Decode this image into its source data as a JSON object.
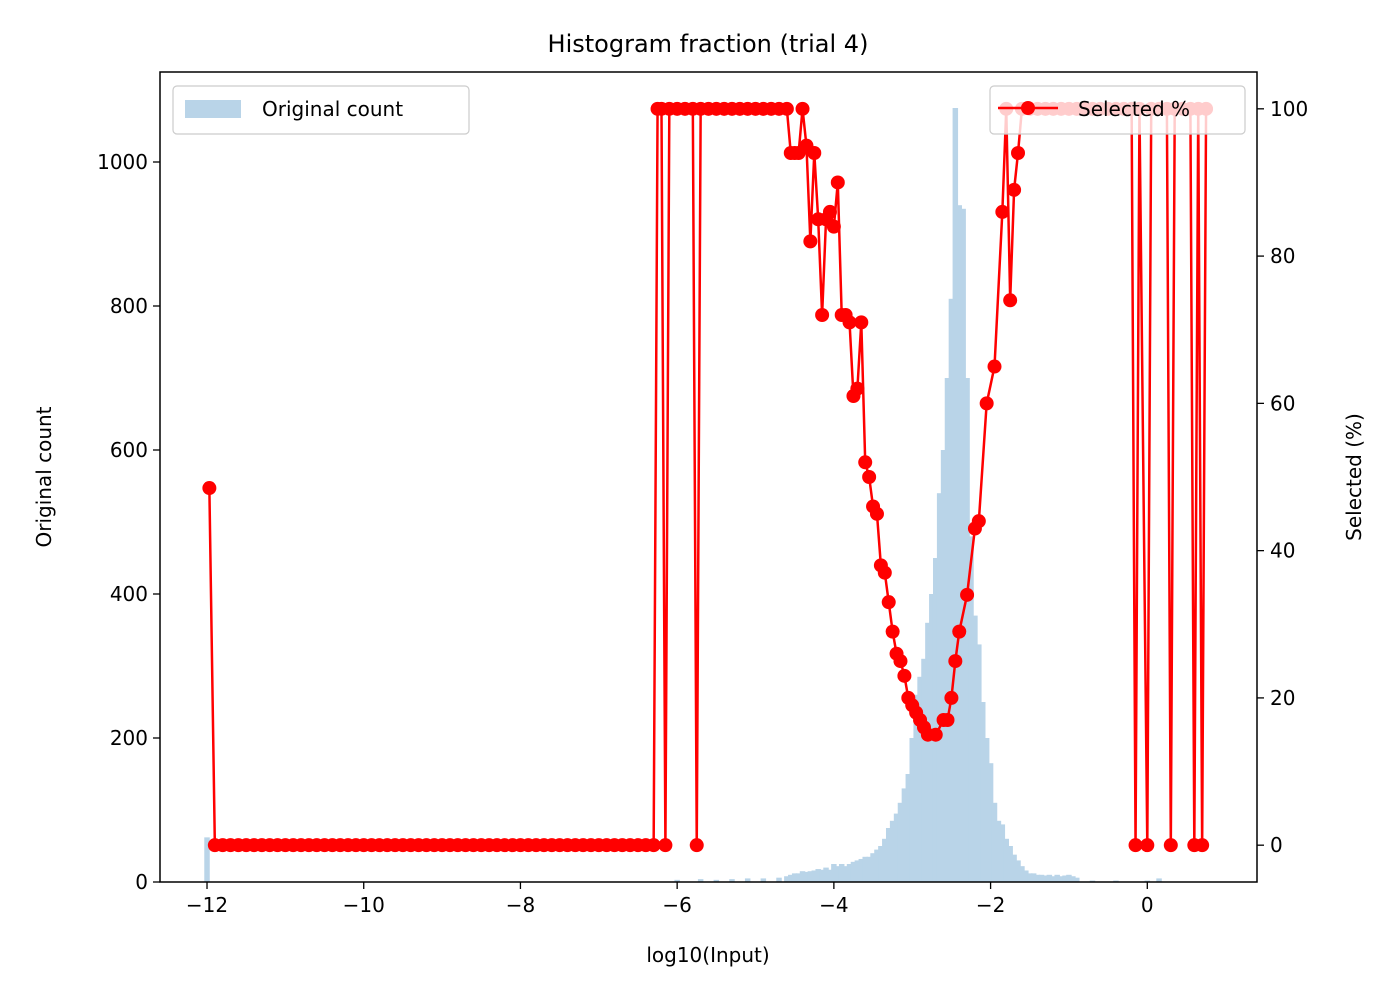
{
  "chart_data": {
    "type": "bar",
    "title": "Histogram fraction (trial 4)",
    "xlabel": "log10(Input)",
    "ylabel_left": "Original count",
    "ylabel_right": "Selected (%)",
    "xlim": [
      -12.6,
      1.4
    ],
    "ylim_left": [
      0,
      1125
    ],
    "ylim_right": [
      -5,
      105
    ],
    "x_ticks": [
      -12,
      -10,
      -8,
      -6,
      -4,
      -2,
      0
    ],
    "x_tick_labels": [
      "−12",
      "−10",
      "−8",
      "−6",
      "−4",
      "−2",
      "0"
    ],
    "y_left_ticks": [
      0,
      200,
      400,
      600,
      800,
      1000
    ],
    "y_left_tick_labels": [
      "0",
      "200",
      "400",
      "600",
      "800",
      "1000"
    ],
    "y_right_ticks": [
      0,
      20,
      40,
      60,
      80,
      100
    ],
    "y_right_tick_labels": [
      "0",
      "20",
      "40",
      "60",
      "80",
      "100"
    ],
    "grid": false,
    "legend": [
      {
        "label": "Original count",
        "position": "top-left",
        "color": "#b9d4e8"
      },
      {
        "label": "Selected %",
        "position": "top-right",
        "color": "#ff0000"
      }
    ],
    "series": [
      {
        "name": "Original count",
        "type": "histogram",
        "color": "#b9d4e8",
        "bin_width": 0.07,
        "bins": [
          [
            -12.0,
            62
          ],
          [
            -6.0,
            3
          ],
          [
            -5.7,
            4
          ],
          [
            -5.5,
            3
          ],
          [
            -5.3,
            4
          ],
          [
            -5.1,
            5
          ],
          [
            -4.9,
            5
          ],
          [
            -4.7,
            6
          ],
          [
            -4.6,
            8
          ],
          [
            -4.55,
            10
          ],
          [
            -4.5,
            12
          ],
          [
            -4.45,
            12
          ],
          [
            -4.4,
            15
          ],
          [
            -4.35,
            14
          ],
          [
            -4.3,
            15
          ],
          [
            -4.25,
            16
          ],
          [
            -4.2,
            18
          ],
          [
            -4.15,
            17
          ],
          [
            -4.1,
            20
          ],
          [
            -4.05,
            17
          ],
          [
            -4.0,
            25
          ],
          [
            -3.95,
            22
          ],
          [
            -3.9,
            25
          ],
          [
            -3.85,
            22
          ],
          [
            -3.8,
            25
          ],
          [
            -3.75,
            28
          ],
          [
            -3.7,
            30
          ],
          [
            -3.65,
            32
          ],
          [
            -3.6,
            35
          ],
          [
            -3.55,
            35
          ],
          [
            -3.5,
            40
          ],
          [
            -3.45,
            45
          ],
          [
            -3.4,
            50
          ],
          [
            -3.35,
            60
          ],
          [
            -3.3,
            75
          ],
          [
            -3.25,
            85
          ],
          [
            -3.2,
            95
          ],
          [
            -3.15,
            110
          ],
          [
            -3.1,
            130
          ],
          [
            -3.05,
            150
          ],
          [
            -3.0,
            200
          ],
          [
            -2.95,
            260
          ],
          [
            -2.9,
            285
          ],
          [
            -2.85,
            310
          ],
          [
            -2.8,
            360
          ],
          [
            -2.75,
            400
          ],
          [
            -2.7,
            450
          ],
          [
            -2.65,
            540
          ],
          [
            -2.6,
            600
          ],
          [
            -2.55,
            700
          ],
          [
            -2.5,
            810
          ],
          [
            -2.45,
            1075
          ],
          [
            -2.4,
            940
          ],
          [
            -2.35,
            935
          ],
          [
            -2.3,
            700
          ],
          [
            -2.25,
            480
          ],
          [
            -2.2,
            370
          ],
          [
            -2.15,
            330
          ],
          [
            -2.1,
            250
          ],
          [
            -2.05,
            200
          ],
          [
            -2.0,
            165
          ],
          [
            -1.95,
            110
          ],
          [
            -1.9,
            85
          ],
          [
            -1.85,
            80
          ],
          [
            -1.8,
            60
          ],
          [
            -1.75,
            50
          ],
          [
            -1.7,
            38
          ],
          [
            -1.65,
            30
          ],
          [
            -1.6,
            22
          ],
          [
            -1.55,
            16
          ],
          [
            -1.5,
            12
          ],
          [
            -1.45,
            12
          ],
          [
            -1.4,
            10
          ],
          [
            -1.35,
            10
          ],
          [
            -1.3,
            9
          ],
          [
            -1.25,
            10
          ],
          [
            -1.2,
            8
          ],
          [
            -1.15,
            10
          ],
          [
            -1.1,
            8
          ],
          [
            -1.05,
            9
          ],
          [
            -1.0,
            10
          ],
          [
            -0.95,
            8
          ],
          [
            -0.9,
            6
          ],
          [
            -0.7,
            2
          ],
          [
            -0.4,
            2
          ],
          [
            0.0,
            2
          ],
          [
            0.15,
            5
          ]
        ]
      },
      {
        "name": "Selected %",
        "type": "line",
        "color": "#ff0000",
        "points": [
          [
            -11.97,
            48.5
          ],
          [
            -11.9,
            0
          ],
          [
            -11.8,
            0
          ],
          [
            -11.7,
            0
          ],
          [
            -11.6,
            0
          ],
          [
            -11.5,
            0
          ],
          [
            -11.4,
            0
          ],
          [
            -11.3,
            0
          ],
          [
            -11.2,
            0
          ],
          [
            -11.1,
            0
          ],
          [
            -11.0,
            0
          ],
          [
            -10.9,
            0
          ],
          [
            -10.8,
            0
          ],
          [
            -10.7,
            0
          ],
          [
            -10.6,
            0
          ],
          [
            -10.5,
            0
          ],
          [
            -10.4,
            0
          ],
          [
            -10.3,
            0
          ],
          [
            -10.2,
            0
          ],
          [
            -10.1,
            0
          ],
          [
            -10.0,
            0
          ],
          [
            -9.9,
            0
          ],
          [
            -9.8,
            0
          ],
          [
            -9.7,
            0
          ],
          [
            -9.6,
            0
          ],
          [
            -9.5,
            0
          ],
          [
            -9.4,
            0
          ],
          [
            -9.3,
            0
          ],
          [
            -9.2,
            0
          ],
          [
            -9.1,
            0
          ],
          [
            -9.0,
            0
          ],
          [
            -8.9,
            0
          ],
          [
            -8.8,
            0
          ],
          [
            -8.7,
            0
          ],
          [
            -8.6,
            0
          ],
          [
            -8.5,
            0
          ],
          [
            -8.4,
            0
          ],
          [
            -8.3,
            0
          ],
          [
            -8.2,
            0
          ],
          [
            -8.1,
            0
          ],
          [
            -8.0,
            0
          ],
          [
            -7.9,
            0
          ],
          [
            -7.8,
            0
          ],
          [
            -7.7,
            0
          ],
          [
            -7.6,
            0
          ],
          [
            -7.5,
            0
          ],
          [
            -7.4,
            0
          ],
          [
            -7.3,
            0
          ],
          [
            -7.2,
            0
          ],
          [
            -7.1,
            0
          ],
          [
            -7.0,
            0
          ],
          [
            -6.9,
            0
          ],
          [
            -6.8,
            0
          ],
          [
            -6.7,
            0
          ],
          [
            -6.6,
            0
          ],
          [
            -6.5,
            0
          ],
          [
            -6.4,
            0
          ],
          [
            -6.3,
            0
          ],
          [
            -6.25,
            100
          ],
          [
            -6.2,
            100
          ],
          [
            -6.15,
            0
          ],
          [
            -6.1,
            100
          ],
          [
            -6.0,
            100
          ],
          [
            -5.9,
            100
          ],
          [
            -5.8,
            100
          ],
          [
            -5.75,
            0
          ],
          [
            -5.7,
            100
          ],
          [
            -5.6,
            100
          ],
          [
            -5.5,
            100
          ],
          [
            -5.4,
            100
          ],
          [
            -5.3,
            100
          ],
          [
            -5.2,
            100
          ],
          [
            -5.1,
            100
          ],
          [
            -5.0,
            100
          ],
          [
            -4.9,
            100
          ],
          [
            -4.8,
            100
          ],
          [
            -4.7,
            100
          ],
          [
            -4.6,
            100
          ],
          [
            -4.55,
            94
          ],
          [
            -4.5,
            94
          ],
          [
            -4.45,
            94
          ],
          [
            -4.4,
            100
          ],
          [
            -4.35,
            95
          ],
          [
            -4.3,
            82
          ],
          [
            -4.25,
            94
          ],
          [
            -4.2,
            85
          ],
          [
            -4.15,
            72
          ],
          [
            -4.1,
            85
          ],
          [
            -4.05,
            86
          ],
          [
            -4.0,
            84
          ],
          [
            -3.95,
            90
          ],
          [
            -3.9,
            72
          ],
          [
            -3.85,
            72
          ],
          [
            -3.8,
            71
          ],
          [
            -3.75,
            61
          ],
          [
            -3.7,
            62
          ],
          [
            -3.65,
            71
          ],
          [
            -3.6,
            52
          ],
          [
            -3.55,
            50
          ],
          [
            -3.5,
            46
          ],
          [
            -3.45,
            45
          ],
          [
            -3.4,
            38
          ],
          [
            -3.35,
            37
          ],
          [
            -3.3,
            33
          ],
          [
            -3.25,
            29
          ],
          [
            -3.2,
            26
          ],
          [
            -3.15,
            25
          ],
          [
            -3.1,
            23
          ],
          [
            -3.05,
            20
          ],
          [
            -3.0,
            19
          ],
          [
            -2.95,
            18
          ],
          [
            -2.9,
            17
          ],
          [
            -2.85,
            16
          ],
          [
            -2.8,
            15
          ],
          [
            -2.7,
            15
          ],
          [
            -2.6,
            17
          ],
          [
            -2.55,
            17
          ],
          [
            -2.5,
            20
          ],
          [
            -2.45,
            25
          ],
          [
            -2.4,
            29
          ],
          [
            -2.3,
            34
          ],
          [
            -2.2,
            43
          ],
          [
            -2.15,
            44
          ],
          [
            -2.05,
            60
          ],
          [
            -1.95,
            65
          ],
          [
            -1.85,
            86
          ],
          [
            -1.8,
            100
          ],
          [
            -1.75,
            74
          ],
          [
            -1.7,
            89
          ],
          [
            -1.65,
            94
          ],
          [
            -1.6,
            100
          ],
          [
            -1.5,
            100
          ],
          [
            -1.4,
            100
          ],
          [
            -1.3,
            100
          ],
          [
            -1.2,
            100
          ],
          [
            -1.1,
            100
          ],
          [
            -1.0,
            100
          ],
          [
            -0.9,
            100
          ],
          [
            -0.8,
            100
          ],
          [
            -0.7,
            100
          ],
          [
            -0.6,
            100
          ],
          [
            -0.5,
            100
          ],
          [
            -0.4,
            100
          ],
          [
            -0.3,
            100
          ],
          [
            -0.2,
            100
          ],
          [
            -0.15,
            0
          ],
          [
            -0.1,
            100
          ],
          [
            0.0,
            0
          ],
          [
            0.05,
            100
          ],
          [
            0.15,
            100
          ],
          [
            0.25,
            100
          ],
          [
            0.3,
            0
          ],
          [
            0.35,
            100
          ],
          [
            0.45,
            100
          ],
          [
            0.55,
            100
          ],
          [
            0.6,
            0
          ],
          [
            0.65,
            100
          ],
          [
            0.7,
            0
          ],
          [
            0.75,
            100
          ]
        ]
      }
    ]
  }
}
